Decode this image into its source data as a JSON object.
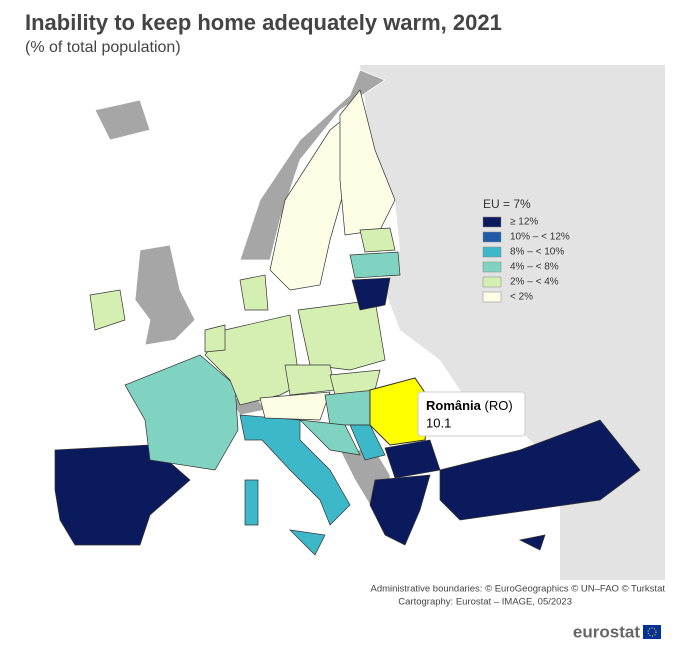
{
  "header": {
    "title": "Inability to keep home adequately warm, 2021",
    "subtitle": "(% of total population)"
  },
  "legend": {
    "title": "EU = 7%",
    "items": [
      {
        "label": "≥ 12%",
        "color": "#0b1a5c"
      },
      {
        "label": "10% – < 12%",
        "color": "#1f5aa6"
      },
      {
        "label": "8% – < 10%",
        "color": "#3db8c9"
      },
      {
        "label": "4% – < 8%",
        "color": "#80d3c0"
      },
      {
        "label": "2% – < 4%",
        "color": "#d5efb2"
      },
      {
        "label": "< 2%",
        "color": "#fdfde6"
      }
    ]
  },
  "tooltip": {
    "name": "România",
    "code": "(RO)",
    "value": 10.1
  },
  "credits": [
    "Administrative boundaries: © EuroGeographics © UN–FAO © Turkstat",
    "Cartography: Eurostat – IMAGE, 05/2023"
  ],
  "logo": "eurostat"
}
